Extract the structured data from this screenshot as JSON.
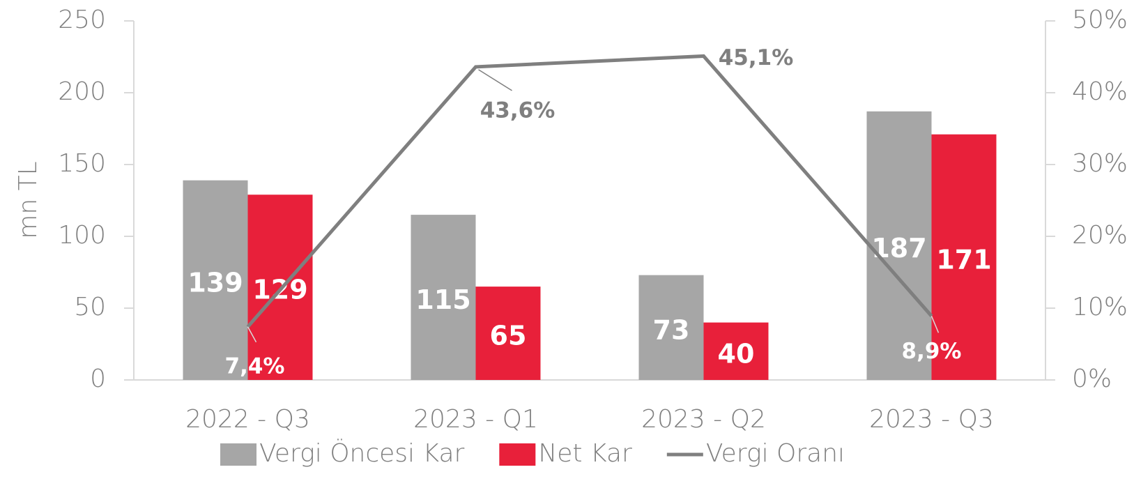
{
  "chart_data": {
    "type": "bar",
    "y_label": "mn TL",
    "categories": [
      "2022 - Q3",
      "2023 - Q1",
      "2023 - Q2",
      "2023 - Q3"
    ],
    "series": [
      {
        "name": "Vergi Öncesi Kar",
        "color": "#a6a6a6",
        "values": [
          139,
          115,
          73,
          187
        ]
      },
      {
        "name": "Net Kar",
        "color": "#e8203a",
        "values": [
          129,
          65,
          40,
          171
        ]
      },
      {
        "name": "Vergi Oranı",
        "type": "line",
        "axis": "y2",
        "color": "#7f7f7f",
        "values": [
          7.4,
          43.6,
          45.1,
          8.9
        ],
        "value_labels": [
          "7,4%",
          "43,6%",
          "45,1%",
          "8,9%"
        ]
      }
    ],
    "ylim": [
      0,
      250
    ],
    "yticks": [
      0,
      50,
      100,
      150,
      200,
      250
    ],
    "y2lim": [
      0,
      50
    ],
    "y2ticks": [
      {
        "value": 0,
        "label": "0%"
      },
      {
        "value": 10,
        "label": "10%"
      },
      {
        "value": 20,
        "label": "20%"
      },
      {
        "value": 30,
        "label": "30%"
      },
      {
        "value": 40,
        "label": "40%"
      },
      {
        "value": 50,
        "label": "50%"
      }
    ],
    "legend": "bottom"
  }
}
